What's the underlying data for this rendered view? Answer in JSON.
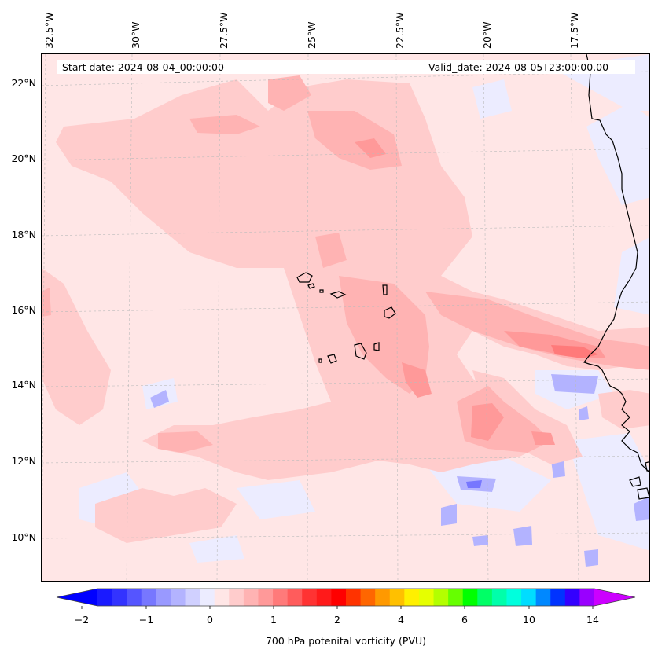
{
  "header": {
    "start_date": "Start date: 2024-08-04_00:00:00",
    "valid_date": "Valid_date: 2024-08-05T23:00:00.00"
  },
  "axes": {
    "lon_labels": [
      "32.5°W",
      "30°W",
      "27.5°W",
      "25°W",
      "22.5°W",
      "20°W",
      "17.5°W"
    ],
    "lat_labels": [
      "22°N",
      "20°N",
      "18°N",
      "16°N",
      "14°N",
      "12°N",
      "10°N"
    ]
  },
  "colorbar": {
    "label": "700 hPa potenital vorticity (PVU)",
    "tick_labels": [
      "−2",
      "−1",
      "0",
      "1",
      "2",
      "4",
      "6",
      "10",
      "14"
    ],
    "colors": [
      "#1a1aff",
      "#3333ff",
      "#5555ff",
      "#7777ff",
      "#9999ff",
      "#b3b3ff",
      "#d0d0ff",
      "#ececff",
      "#ffe6e6",
      "#ffcccc",
      "#ffb3b3",
      "#ff9999",
      "#ff7a7a",
      "#ff5c5c",
      "#ff3333",
      "#ff1a1a",
      "#ff0000",
      "#ff3300",
      "#ff6600",
      "#ff9900",
      "#ffc000",
      "#fff000",
      "#e6ff00",
      "#b3ff00",
      "#66ff00",
      "#00ff00",
      "#00ff66",
      "#00ffaa",
      "#00ffdd",
      "#00ddff",
      "#0088ff",
      "#0033ff",
      "#3300ff",
      "#9900ff"
    ],
    "extend_min_color": "#0000ff",
    "extend_max_color": "#cc00ff"
  }
}
